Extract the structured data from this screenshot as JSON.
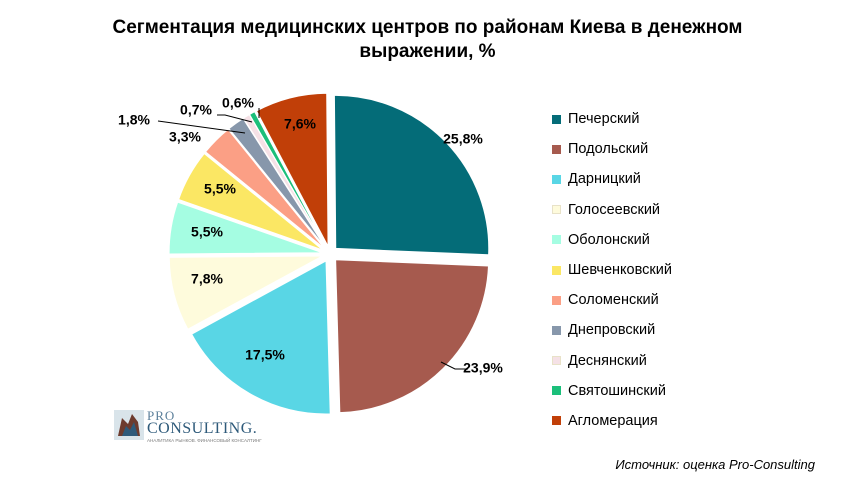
{
  "title": "Сегментация медицинских центров по районам Киева в денежном выражении, %",
  "source": "Источник: оценка Pro-Consulting",
  "logo": {
    "pro": "PRO",
    "consulting": "CONSULTING.",
    "tagline": "АНАЛИТИКА РЫНКОВ. ФИНАНСОВЫЙ КОНСАЛТИНГ"
  },
  "chart_data": {
    "type": "pie",
    "title": "Сегментация медицинских центров по районам Киева в денежном выражении, %",
    "legend_position": "right",
    "slices": [
      {
        "name": "Печерский",
        "value": 25.8,
        "label": "25,8%",
        "color": "#046c78"
      },
      {
        "name": "Подольский",
        "value": 23.9,
        "label": "23,9%",
        "color": "#a65a4e"
      },
      {
        "name": "Дарницкий",
        "value": 17.5,
        "label": "17,5%",
        "color": "#59d6e5"
      },
      {
        "name": "Голосеевский",
        "value": 7.8,
        "label": "7,8%",
        "color": "#fefbdc"
      },
      {
        "name": "Оболонский",
        "value": 5.5,
        "label": "5,5%",
        "color": "#a5fde2"
      },
      {
        "name": "Шевченковский",
        "value": 5.5,
        "label": "5,5%",
        "color": "#fbe764"
      },
      {
        "name": "Соломенский",
        "value": 3.3,
        "label": "3,3%",
        "color": "#fb9f85"
      },
      {
        "name": "Днепровский",
        "value": 1.8,
        "label": "1,8%",
        "color": "#8797ab"
      },
      {
        "name": "Деснянский",
        "value": 0.7,
        "label": "0,7%",
        "color": "#f5e1e6"
      },
      {
        "name": "Святошинский",
        "value": 0.6,
        "label": "0,6%",
        "color": "#1bbf7a"
      },
      {
        "name": "Агломерация",
        "value": 7.6,
        "label": "7,6%",
        "color": "#c13f08"
      }
    ]
  }
}
